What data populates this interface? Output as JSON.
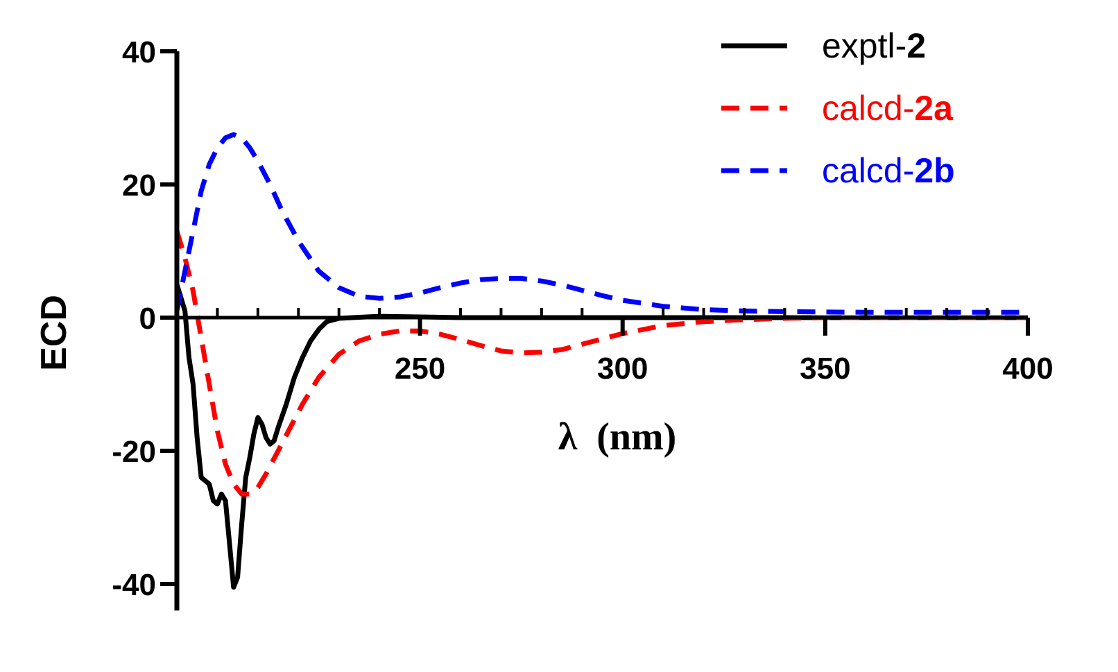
{
  "chart_data": {
    "type": "line",
    "title": "",
    "xlabel": "λ  (nm)",
    "ylabel": "ECD",
    "xlim": [
      190,
      400
    ],
    "ylim": [
      -44,
      40
    ],
    "x_ticks": [
      250,
      300,
      350,
      400
    ],
    "x_tick_labels": [
      "250",
      "300",
      "350",
      "400"
    ],
    "y_ticks": [
      40,
      20,
      0,
      -20,
      -40
    ],
    "y_tick_labels": [
      "40",
      "20",
      "0",
      "-20",
      "-40"
    ],
    "legend_position": "top-right",
    "series": [
      {
        "name": "exptl-2",
        "legend_prefix": "exptl-",
        "legend_bold": "2",
        "color": "#000000",
        "style": "solid",
        "points": [
          [
            190,
            5
          ],
          [
            192,
            1
          ],
          [
            193,
            -6
          ],
          [
            194,
            -10
          ],
          [
            195,
            -18
          ],
          [
            196,
            -24
          ],
          [
            197,
            -24.5
          ],
          [
            198,
            -25
          ],
          [
            199,
            -27.5
          ],
          [
            200,
            -28
          ],
          [
            201,
            -26.5
          ],
          [
            202,
            -27.5
          ],
          [
            203,
            -34
          ],
          [
            204,
            -40.5
          ],
          [
            205,
            -39
          ],
          [
            206,
            -31
          ],
          [
            207,
            -24
          ],
          [
            208,
            -21
          ],
          [
            209,
            -17.5
          ],
          [
            210,
            -15
          ],
          [
            211,
            -16
          ],
          [
            212,
            -18
          ],
          [
            213,
            -19
          ],
          [
            214,
            -18.5
          ],
          [
            215,
            -16.5
          ],
          [
            217,
            -13
          ],
          [
            219,
            -9
          ],
          [
            221,
            -6
          ],
          [
            223,
            -3.5
          ],
          [
            225,
            -1.8
          ],
          [
            227,
            -0.6
          ],
          [
            230,
            -0.1
          ],
          [
            240,
            0.2
          ],
          [
            250,
            0.1
          ],
          [
            260,
            0
          ],
          [
            300,
            0
          ],
          [
            350,
            0
          ],
          [
            400,
            0
          ]
        ]
      },
      {
        "name": "calcd-2a",
        "legend_prefix": "calcd-",
        "legend_bold": "2a",
        "color": "#ff0000",
        "style": "dashed",
        "points": [
          [
            190,
            13
          ],
          [
            192,
            9
          ],
          [
            194,
            4
          ],
          [
            196,
            -3
          ],
          [
            198,
            -10
          ],
          [
            200,
            -17
          ],
          [
            202,
            -22
          ],
          [
            204,
            -25
          ],
          [
            206,
            -26.5
          ],
          [
            208,
            -26.5
          ],
          [
            210,
            -25.5
          ],
          [
            212,
            -23.5
          ],
          [
            215,
            -20
          ],
          [
            218,
            -16.5
          ],
          [
            221,
            -13
          ],
          [
            225,
            -9
          ],
          [
            230,
            -5.5
          ],
          [
            235,
            -3.5
          ],
          [
            240,
            -2.5
          ],
          [
            245,
            -2
          ],
          [
            250,
            -2
          ],
          [
            255,
            -2.5
          ],
          [
            260,
            -3.3
          ],
          [
            265,
            -4.2
          ],
          [
            270,
            -5
          ],
          [
            275,
            -5.3
          ],
          [
            280,
            -5.2
          ],
          [
            285,
            -4.8
          ],
          [
            290,
            -4
          ],
          [
            295,
            -3.2
          ],
          [
            300,
            -2.4
          ],
          [
            310,
            -1.2
          ],
          [
            320,
            -0.6
          ],
          [
            330,
            -0.3
          ],
          [
            340,
            -0.1
          ],
          [
            350,
            0
          ],
          [
            375,
            0
          ],
          [
            400,
            0
          ]
        ]
      },
      {
        "name": "calcd-2b",
        "legend_prefix": "calcd-",
        "legend_bold": "2b",
        "color": "#0000ff",
        "style": "dashed",
        "points": [
          [
            190,
            1
          ],
          [
            192,
            7
          ],
          [
            194,
            13
          ],
          [
            196,
            19
          ],
          [
            198,
            23
          ],
          [
            200,
            25.5
          ],
          [
            202,
            27
          ],
          [
            204,
            27.5
          ],
          [
            206,
            27
          ],
          [
            208,
            25.5
          ],
          [
            210,
            23.5
          ],
          [
            213,
            20
          ],
          [
            216,
            16
          ],
          [
            220,
            11.5
          ],
          [
            225,
            7
          ],
          [
            230,
            4.5
          ],
          [
            235,
            3.2
          ],
          [
            240,
            2.9
          ],
          [
            245,
            3.1
          ],
          [
            250,
            3.7
          ],
          [
            255,
            4.5
          ],
          [
            260,
            5.2
          ],
          [
            265,
            5.7
          ],
          [
            270,
            5.9
          ],
          [
            275,
            5.9
          ],
          [
            280,
            5.5
          ],
          [
            285,
            4.9
          ],
          [
            290,
            4.1
          ],
          [
            295,
            3.3
          ],
          [
            300,
            2.6
          ],
          [
            310,
            1.7
          ],
          [
            320,
            1.2
          ],
          [
            330,
            1
          ],
          [
            340,
            0.9
          ],
          [
            360,
            0.8
          ],
          [
            380,
            0.8
          ],
          [
            400,
            0.8
          ]
        ]
      }
    ]
  }
}
